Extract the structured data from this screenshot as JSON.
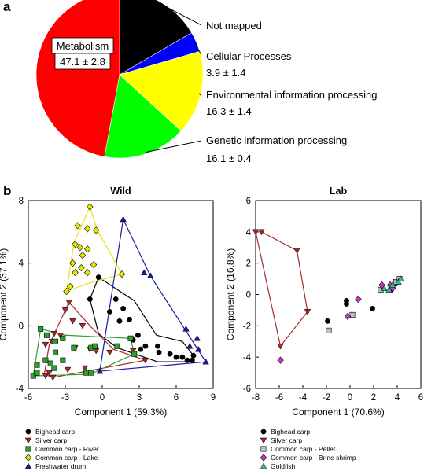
{
  "panel_labels": {
    "a": "a",
    "b": "b"
  },
  "colors": {
    "bighead": "#000000",
    "silver": "#a52a2a",
    "river": "#2ca02c",
    "lake": "#e6e600",
    "drum": "#1a1aa0",
    "pellet": "#bdbdbd",
    "brine": "#cc33cc",
    "goldfish": "#33bb88"
  },
  "chart_data": [
    {
      "type": "pie",
      "slices": [
        {
          "key": "metabolism",
          "label": "Metabolism",
          "value": 47.1,
          "value_text": "47.1 ± 2.8",
          "color": "#ff0000"
        },
        {
          "key": "not_mapped",
          "label": "Not mapped",
          "value": 16.6,
          "value_text": "",
          "color": "#000000"
        },
        {
          "key": "cellular",
          "label": "Cellular Processes",
          "value": 3.9,
          "value_text": "3.9 ± 1.4",
          "color": "#0000ff"
        },
        {
          "key": "environmental",
          "label": "Environmental information processing",
          "value": 16.3,
          "value_text": "16.3 ± 1.4",
          "color": "#ffff00"
        },
        {
          "key": "genetic",
          "label": "Genetic information processing",
          "value": 16.1,
          "value_text": "16.1 ± 0.4",
          "color": "#00ff00"
        }
      ]
    },
    {
      "type": "scatter",
      "title": "Wild",
      "xlabel": "Component 1 (59.3%)",
      "ylabel": "Component 2 (37.1%)",
      "xlim": [
        -6,
        9
      ],
      "ylim": [
        -4,
        8
      ],
      "xticks": [
        "-6",
        "-3",
        "0",
        "3",
        "6",
        "9"
      ],
      "yticks": [
        "-4",
        "0",
        "4",
        "8"
      ],
      "series": [
        {
          "name": "Bighead carp",
          "marker": "circle",
          "color_key": "bighead",
          "points": [
            [
              -1,
              1.7
            ],
            [
              -0.3,
              3.1
            ],
            [
              0.6,
              0.9
            ],
            [
              1.1,
              1.7
            ],
            [
              1.7,
              1.1
            ],
            [
              1.4,
              0.3
            ],
            [
              2.2,
              0.4
            ],
            [
              2.9,
              -0.6
            ],
            [
              2.5,
              -0.9
            ],
            [
              3.1,
              -1.5
            ],
            [
              3.5,
              -1.3
            ],
            [
              4.5,
              -1.3
            ],
            [
              4.6,
              -1.7
            ],
            [
              5.5,
              -1.8
            ],
            [
              6.0,
              -2.0
            ],
            [
              6.5,
              -2.0
            ],
            [
              6.9,
              -2.2
            ],
            [
              7.3,
              -2.2
            ],
            [
              7.4,
              -1.9
            ]
          ],
          "hull": [
            [
              -0.3,
              3.1
            ],
            [
              2.6,
              1.6
            ],
            [
              4.4,
              -0.6
            ],
            [
              6.5,
              -1.0
            ],
            [
              7.4,
              -1.9
            ],
            [
              7.1,
              -2.3
            ],
            [
              4.5,
              -2.3
            ],
            [
              1.2,
              -1.4
            ],
            [
              -0.3,
              -0.5
            ],
            [
              -1,
              1.7
            ],
            [
              -0.3,
              3.1
            ]
          ]
        },
        {
          "name": "Silver carp",
          "marker": "triangle-down",
          "color_key": "silver",
          "points": [
            [
              -2.7,
              1.5
            ],
            [
              -3,
              1.0
            ],
            [
              -2.4,
              0.3
            ],
            [
              -3.9,
              -0.5
            ],
            [
              -3.4,
              -0.6
            ],
            [
              -1.6,
              0.0
            ],
            [
              -4.1,
              -1.0
            ],
            [
              -4.6,
              -1.2
            ],
            [
              -2.2,
              -1.4
            ],
            [
              -1.0,
              -1.5
            ],
            [
              -0.5,
              -1.6
            ],
            [
              0.6,
              -1.7
            ],
            [
              2.5,
              -1.6
            ],
            [
              3.5,
              -2.2
            ],
            [
              -1.4,
              -2.7
            ],
            [
              -2.8,
              -2.8
            ],
            [
              -4.3,
              -3.0
            ],
            [
              -4.6,
              -3.2
            ],
            [
              -4.0,
              -3.3
            ]
          ],
          "hull": [
            [
              -2.7,
              1.5
            ],
            [
              -1.0,
              0.0
            ],
            [
              0.9,
              -1.5
            ],
            [
              3.5,
              -2.2
            ],
            [
              -4.0,
              -3.3
            ],
            [
              -4.7,
              -3.1
            ],
            [
              -4.3,
              -1.2
            ],
            [
              -2.7,
              1.5
            ]
          ]
        },
        {
          "name": "Common carp - River",
          "marker": "square",
          "color_key": "river",
          "points": [
            [
              -5.0,
              -0.2
            ],
            [
              -4.5,
              -0.6
            ],
            [
              -3.8,
              -1.0
            ],
            [
              -3.2,
              -0.8
            ],
            [
              -2.3,
              -1.4
            ],
            [
              -0.9,
              -1.4
            ],
            [
              -0.6,
              -1.3
            ],
            [
              1.2,
              -1.3
            ],
            [
              2.3,
              -0.8
            ],
            [
              -3.8,
              -1.7
            ],
            [
              -3.2,
              -2.2
            ],
            [
              -4.6,
              -2.2
            ],
            [
              -3.9,
              -2.7
            ],
            [
              -4.2,
              -2.4
            ],
            [
              -5.3,
              -2.5
            ],
            [
              -5.6,
              -3.2
            ],
            [
              -5.3,
              -3.0
            ],
            [
              -1.3,
              -3.0
            ],
            [
              -0.9,
              -3.0
            ],
            [
              2.6,
              -1.8
            ]
          ],
          "hull": [
            [
              -5.0,
              -0.2
            ],
            [
              -3.0,
              -0.6
            ],
            [
              2.3,
              -0.8
            ],
            [
              2.6,
              -1.8
            ],
            [
              -1.0,
              -3.1
            ],
            [
              -5.6,
              -3.2
            ],
            [
              -5.0,
              -0.2
            ]
          ]
        },
        {
          "name": "Common carp - Lake",
          "marker": "diamond",
          "color_key": "lake",
          "points": [
            [
              -1.0,
              7.6
            ],
            [
              -2.0,
              6.4
            ],
            [
              -1.2,
              6.2
            ],
            [
              -0.5,
              6.1
            ],
            [
              -2.2,
              5.2
            ],
            [
              -1.8,
              5.0
            ],
            [
              -1.2,
              4.9
            ],
            [
              -1.6,
              4.5
            ],
            [
              -2.4,
              4.0
            ],
            [
              -1.7,
              3.7
            ],
            [
              -1.2,
              3.4
            ],
            [
              -2.2,
              3.4
            ],
            [
              -2.6,
              2.5
            ],
            [
              -2.9,
              2.2
            ],
            [
              -0.7,
              3.9
            ],
            [
              1.6,
              3.3
            ]
          ],
          "hull": [
            [
              -1.0,
              7.6
            ],
            [
              -0.4,
              6.1
            ],
            [
              1.6,
              3.3
            ],
            [
              -1.2,
              2.7
            ],
            [
              -2.9,
              2.2
            ],
            [
              -2.3,
              5.3
            ],
            [
              -1.0,
              7.6
            ]
          ]
        },
        {
          "name": "Freshwater drum",
          "marker": "triangle-up",
          "color_key": "drum",
          "points": [
            [
              1.7,
              6.8
            ],
            [
              3.4,
              3.4
            ],
            [
              3.9,
              3.2
            ],
            [
              6.8,
              -0.2
            ],
            [
              7.7,
              -0.8
            ],
            [
              7.1,
              -1.3
            ],
            [
              7.8,
              -1.5
            ],
            [
              8.4,
              -2.3
            ],
            [
              -0.2,
              -2.9
            ]
          ],
          "hull": [
            [
              1.7,
              6.8
            ],
            [
              3.9,
              3.2
            ],
            [
              8.4,
              -2.3
            ],
            [
              -0.2,
              -2.9
            ],
            [
              1.7,
              6.8
            ]
          ]
        }
      ]
    },
    {
      "type": "scatter",
      "title": "Lab",
      "xlabel": "Component 1 (70.6%)",
      "ylabel": "Component 2 (16.8%)",
      "xlim": [
        -8,
        6
      ],
      "ylim": [
        -6,
        6
      ],
      "xticks": [
        "-8",
        "-6",
        "-4",
        "-2",
        "0",
        "2",
        "4",
        "6"
      ],
      "yticks": [
        "-6",
        "-4",
        "-2",
        "0",
        "2",
        "4",
        "6"
      ],
      "series": [
        {
          "name": "Bighead carp",
          "marker": "circle",
          "color_key": "bighead",
          "points": [
            [
              -1.9,
              -1.7
            ],
            [
              -0.3,
              -0.4
            ],
            [
              -0.3,
              -0.6
            ],
            [
              1.9,
              -0.9
            ],
            [
              3.5,
              0.3
            ],
            [
              3.6,
              0.5
            ],
            [
              3.9,
              0.7
            ]
          ]
        },
        {
          "name": "Silver carp",
          "marker": "triangle-down",
          "color_key": "silver",
          "points": [
            [
              -8.0,
              4.0
            ],
            [
              -7.5,
              4.0
            ],
            [
              -4.5,
              2.8
            ],
            [
              -3.6,
              -1.1
            ],
            [
              -5.9,
              -3.3
            ]
          ],
          "hull": [
            [
              -8.0,
              4.0
            ],
            [
              -7.5,
              4.0
            ],
            [
              -4.5,
              2.8
            ],
            [
              -3.6,
              -1.1
            ],
            [
              -5.9,
              -3.3
            ],
            [
              -8.0,
              4.0
            ]
          ]
        },
        {
          "name": "Common carp - Pellet",
          "marker": "square",
          "color_key": "pellet",
          "points": [
            [
              -1.8,
              -2.3
            ],
            [
              0.2,
              -1.3
            ],
            [
              2.6,
              0.3
            ],
            [
              3.9,
              0.8
            ],
            [
              4.2,
              1.0
            ]
          ]
        },
        {
          "name": "Common carp - Brine shrimp",
          "marker": "diamond",
          "color_key": "brine",
          "points": [
            [
              -5.9,
              -4.2
            ],
            [
              -0.2,
              -1.4
            ],
            [
              0.7,
              -0.3
            ],
            [
              2.7,
              0.6
            ],
            [
              3.4,
              0.6
            ],
            [
              3.6,
              0.4
            ]
          ]
        },
        {
          "name": "Goldfish",
          "marker": "triangle-up",
          "color_key": "goldfish",
          "points": [
            [
              2.9,
              0.4
            ],
            [
              3.3,
              0.3
            ],
            [
              3.6,
              0.6
            ],
            [
              4.1,
              0.8
            ],
            [
              4.3,
              1.0
            ]
          ]
        }
      ]
    }
  ]
}
